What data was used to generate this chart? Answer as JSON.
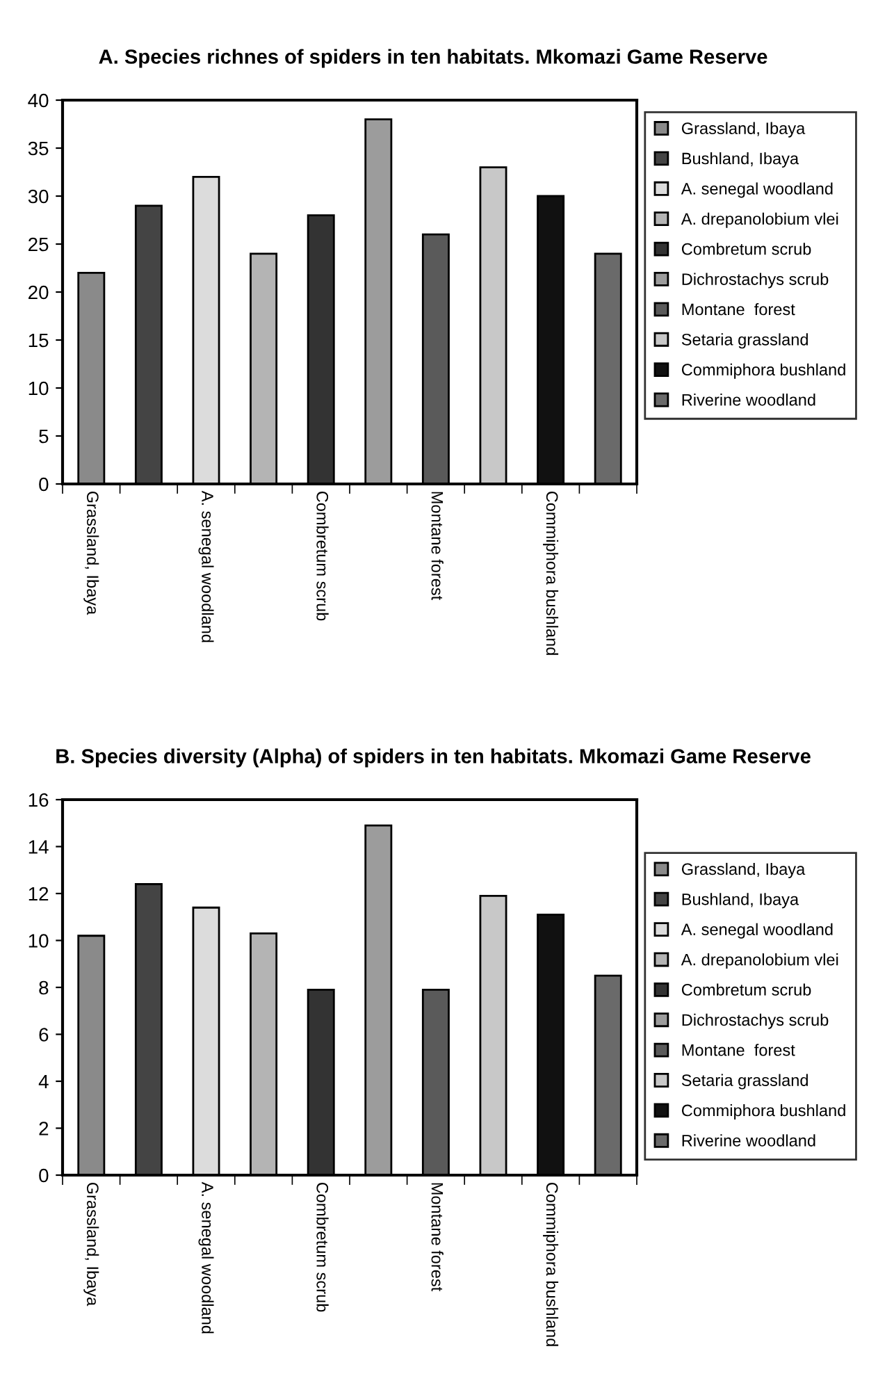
{
  "chart_data": [
    {
      "type": "bar",
      "title": "A. Species richnes of spiders in ten habitats. Mkomazi Game Reserve",
      "categories": [
        "Grassland, Ibaya",
        null,
        "A. senegal woodland",
        null,
        "Combretum scrub",
        null,
        "Montane forest",
        null,
        "Commiphora bushland",
        null
      ],
      "ylim": [
        0,
        40
      ],
      "yticks": [
        0,
        5,
        10,
        15,
        20,
        25,
        30,
        35,
        40
      ],
      "grid": false,
      "legend": "right",
      "series": [
        {
          "name": "Grassland, Ibaya",
          "color": "#8a8a8a",
          "values": [
            22,
            null,
            null,
            null,
            null,
            null,
            null,
            null,
            null,
            null
          ]
        },
        {
          "name": "Bushland, Ibaya",
          "color": "#444444",
          "values": [
            null,
            29,
            null,
            null,
            null,
            null,
            null,
            null,
            null,
            null
          ]
        },
        {
          "name": "A. senegal woodland",
          "color": "#dcdcdc",
          "values": [
            null,
            null,
            32,
            null,
            null,
            null,
            null,
            null,
            null,
            null
          ]
        },
        {
          "name": "A. drepanolobium vlei",
          "color": "#b4b4b4",
          "values": [
            null,
            null,
            null,
            24,
            null,
            null,
            null,
            null,
            null,
            null
          ]
        },
        {
          "name": "Combretum scrub",
          "color": "#333333",
          "values": [
            null,
            null,
            null,
            null,
            28,
            null,
            null,
            null,
            null,
            null
          ]
        },
        {
          "name": "Dichrostachys scrub",
          "color": "#9c9c9c",
          "values": [
            null,
            null,
            null,
            null,
            null,
            38,
            null,
            null,
            null,
            null
          ]
        },
        {
          "name": "Montane  forest",
          "color": "#5a5a5a",
          "values": [
            null,
            null,
            null,
            null,
            null,
            null,
            26,
            null,
            null,
            null
          ]
        },
        {
          "name": "Setaria grassland",
          "color": "#c8c8c8",
          "values": [
            null,
            null,
            null,
            null,
            null,
            null,
            null,
            33,
            null,
            null
          ]
        },
        {
          "name": "Commiphora bushland",
          "color": "#111111",
          "values": [
            null,
            null,
            null,
            null,
            null,
            null,
            null,
            null,
            30,
            null
          ]
        },
        {
          "name": "Riverine woodland",
          "color": "#6a6a6a",
          "values": [
            null,
            null,
            null,
            null,
            null,
            null,
            null,
            null,
            null,
            24
          ]
        }
      ]
    },
    {
      "type": "bar",
      "title": "B. Species diversity (Alpha) of spiders in ten habitats. Mkomazi Game Reserve",
      "categories": [
        "Grassland, Ibaya",
        null,
        "A. senegal woodland",
        null,
        "Combretum scrub",
        null,
        "Montane forest",
        null,
        "Commiphora bushland",
        null
      ],
      "ylim": [
        0,
        16
      ],
      "yticks": [
        0,
        2,
        4,
        6,
        8,
        10,
        12,
        14,
        16
      ],
      "grid": false,
      "legend": "right",
      "series": [
        {
          "name": "Grassland, Ibaya",
          "color": "#8a8a8a",
          "values": [
            10.2,
            null,
            null,
            null,
            null,
            null,
            null,
            null,
            null,
            null
          ]
        },
        {
          "name": "Bushland, Ibaya",
          "color": "#444444",
          "values": [
            null,
            12.4,
            null,
            null,
            null,
            null,
            null,
            null,
            null,
            null
          ]
        },
        {
          "name": "A. senegal woodland",
          "color": "#dcdcdc",
          "values": [
            null,
            null,
            11.4,
            null,
            null,
            null,
            null,
            null,
            null,
            null
          ]
        },
        {
          "name": "A. drepanolobium vlei",
          "color": "#b4b4b4",
          "values": [
            null,
            null,
            null,
            10.3,
            null,
            null,
            null,
            null,
            null,
            null
          ]
        },
        {
          "name": "Combretum scrub",
          "color": "#333333",
          "values": [
            null,
            null,
            null,
            null,
            7.9,
            null,
            null,
            null,
            null,
            null
          ]
        },
        {
          "name": "Dichrostachys scrub",
          "color": "#9c9c9c",
          "values": [
            null,
            null,
            null,
            null,
            null,
            14.9,
            null,
            null,
            null,
            null
          ]
        },
        {
          "name": "Montane  forest",
          "color": "#5a5a5a",
          "values": [
            null,
            null,
            null,
            null,
            null,
            null,
            7.9,
            null,
            null,
            null
          ]
        },
        {
          "name": "Setaria grassland",
          "color": "#c8c8c8",
          "values": [
            null,
            null,
            null,
            null,
            null,
            null,
            null,
            11.9,
            null,
            null
          ]
        },
        {
          "name": "Commiphora bushland",
          "color": "#111111",
          "values": [
            null,
            null,
            null,
            null,
            null,
            null,
            null,
            null,
            11.1,
            null
          ]
        },
        {
          "name": "Riverine woodland",
          "color": "#6a6a6a",
          "values": [
            null,
            null,
            null,
            null,
            null,
            null,
            null,
            null,
            null,
            8.5
          ]
        }
      ]
    }
  ]
}
